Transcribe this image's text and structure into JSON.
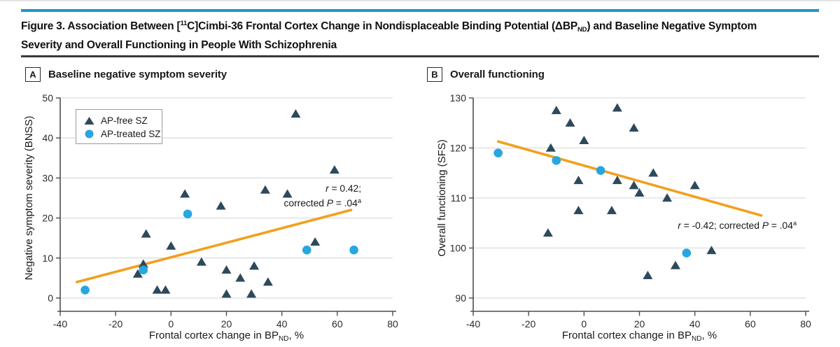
{
  "title": {
    "line1_pre": "Figure 3. Association Between [",
    "line1_sup": "11",
    "line1_mid": "C]Cimbi-36 Frontal Cortex Change in Nondisplaceable Binding Potential (ΔBP",
    "line1_sub": "ND",
    "line1_post": ") and Baseline Negative Symptom",
    "line2": "Severity and Overall Functioning in People With Schizophrenia"
  },
  "x_axis_label": {
    "pre": "Frontal cortex change in BP",
    "sub": "ND",
    "post": ", %"
  },
  "colors": {
    "accent_bar": "#1e96c8",
    "title_rule": "#3a3a3a",
    "triangle": "#2d4a5c",
    "circle": "#27a7e0",
    "trend": "#f2a01e",
    "grid": "#dadde0",
    "axis": "#4d4d4d",
    "tick_text": "#2b2b2b"
  },
  "chart_data": [
    {
      "panel": "A",
      "type": "scatter",
      "title": "Baseline negative symptom severity",
      "xlabel": "Frontal cortex change in BPND, %",
      "ylabel": "Negative symptom severity (BNSS)",
      "xlim": [
        -40,
        80
      ],
      "ylim": [
        0,
        50
      ],
      "xticks": [
        -40,
        -20,
        0,
        20,
        40,
        60,
        80
      ],
      "yticks": [
        0,
        10,
        20,
        30,
        40,
        50
      ],
      "legend_position": "upper-left",
      "grid": true,
      "series": [
        {
          "name": "AP-free SZ",
          "marker": "triangle",
          "color": "#2d4a5c",
          "points": [
            [
              -12,
              6
            ],
            [
              -10,
              8.5
            ],
            [
              -9,
              16
            ],
            [
              -5,
              2
            ],
            [
              -2,
              2
            ],
            [
              0,
              13
            ],
            [
              5,
              26
            ],
            [
              11,
              9
            ],
            [
              18,
              23
            ],
            [
              20,
              7
            ],
            [
              20,
              1
            ],
            [
              25,
              5
            ],
            [
              29,
              1
            ],
            [
              30,
              8
            ],
            [
              34,
              27
            ],
            [
              35,
              4
            ],
            [
              42,
              26
            ],
            [
              45,
              46
            ],
            [
              52,
              14
            ],
            [
              59,
              32
            ]
          ]
        },
        {
          "name": "AP-treated SZ",
          "marker": "circle",
          "color": "#27a7e0",
          "points": [
            [
              -31,
              2
            ],
            [
              -10,
              7
            ],
            [
              6,
              21
            ],
            [
              49,
              12
            ],
            [
              66,
              12
            ]
          ]
        }
      ],
      "trend": {
        "x1": -34,
        "y1": 4,
        "x2": 65,
        "y2": 22
      },
      "correlation": "r = 0.42; corrected P = .04a",
      "annotation": {
        "r_italic": "r",
        "r_text": " = 0.42;",
        "line2_text": "corrected ",
        "p_italic": "P",
        "p_text": " = .04",
        "sup": "a"
      }
    },
    {
      "panel": "B",
      "type": "scatter",
      "title": "Overall functioning",
      "xlabel": "Frontal cortex change in BPND, %",
      "ylabel": "Overall functioning (SFS)",
      "xlim": [
        -40,
        80
      ],
      "ylim": [
        90,
        130
      ],
      "xticks": [
        -40,
        -20,
        0,
        20,
        40,
        60,
        80
      ],
      "yticks": [
        90,
        100,
        110,
        120,
        130
      ],
      "grid": true,
      "series": [
        {
          "name": "AP-free SZ",
          "marker": "triangle",
          "color": "#2d4a5c",
          "points": [
            [
              -13,
              103
            ],
            [
              -12,
              120
            ],
            [
              -10,
              127.5
            ],
            [
              -5,
              125
            ],
            [
              -2,
              113.5
            ],
            [
              -2,
              107.5
            ],
            [
              0,
              121.5
            ],
            [
              10,
              107.5
            ],
            [
              12,
              128
            ],
            [
              12,
              113.5
            ],
            [
              18,
              124
            ],
            [
              18,
              112.5
            ],
            [
              20,
              111
            ],
            [
              23,
              94.5
            ],
            [
              25,
              115
            ],
            [
              30,
              110
            ],
            [
              33,
              96.5
            ],
            [
              40,
              112.5
            ],
            [
              46,
              99.5
            ]
          ]
        },
        {
          "name": "AP-treated SZ",
          "marker": "circle",
          "color": "#27a7e0",
          "points": [
            [
              -31,
              119
            ],
            [
              -10,
              117.5
            ],
            [
              6,
              115.5
            ],
            [
              37,
              99
            ]
          ]
        }
      ],
      "trend": {
        "x1": -31,
        "y1": 121.3,
        "x2": 64,
        "y2": 106.5
      },
      "correlation": "r = -0.42; corrected P = .04a",
      "annotation": {
        "r_italic": "r",
        "r_text": " = -0.42; corrected ",
        "p_italic": "P",
        "p_text": " = .04",
        "sup": "a"
      }
    }
  ]
}
